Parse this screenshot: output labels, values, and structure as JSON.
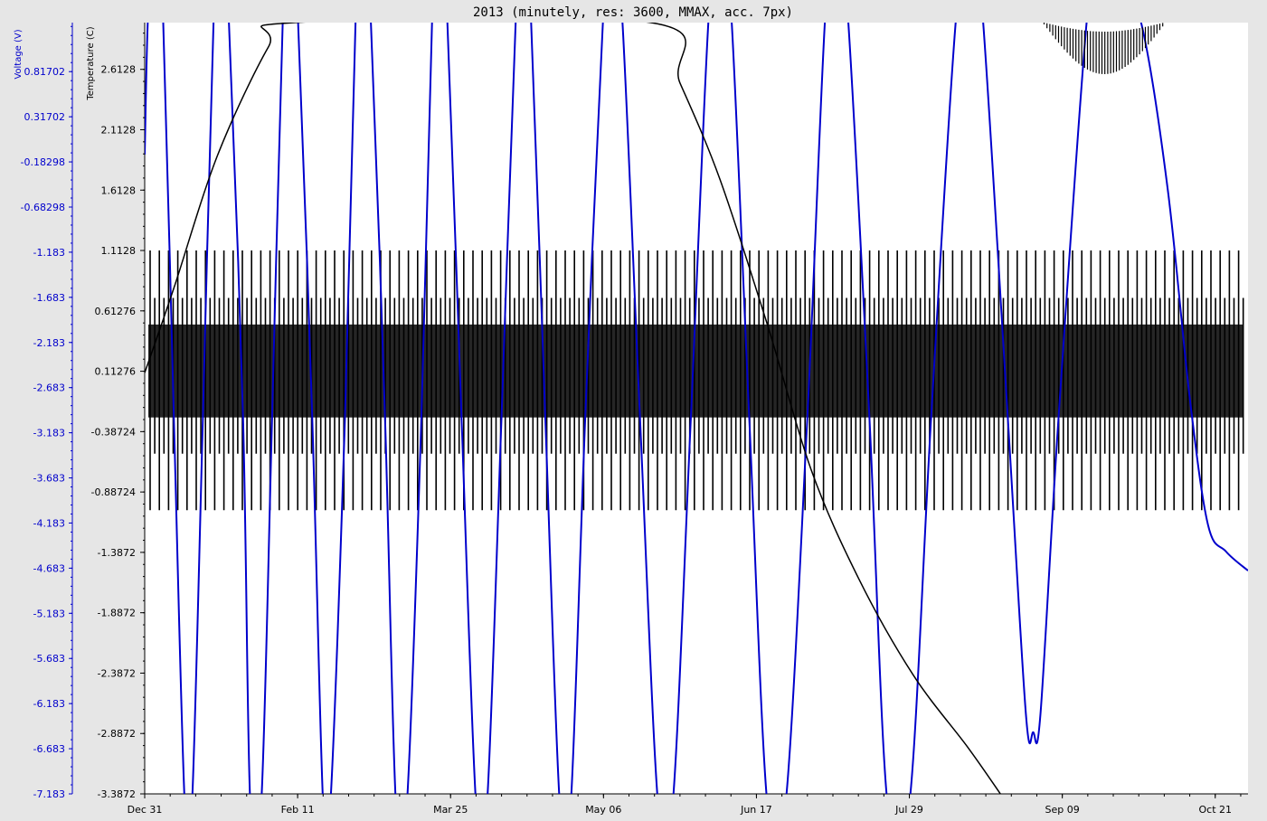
{
  "chart_data": {
    "type": "line",
    "title": "2013 (minutely, res: 3600, MMAX, acc. 7px)",
    "colors": {
      "voltage": "#0000cc",
      "temperature": "#000000",
      "background": "#ffffff",
      "frame": "#e6e6e6"
    },
    "x_axis": {
      "type": "date",
      "range": [
        "2013-12-31",
        "2014-10-30"
      ],
      "ticks": [
        {
          "date": "2013-12-31",
          "label": "Dec 31"
        },
        {
          "date": "2014-02-11",
          "label": "Feb 11"
        },
        {
          "date": "2014-03-25",
          "label": "Mar 25"
        },
        {
          "date": "2014-05-06",
          "label": "May 06"
        },
        {
          "date": "2014-06-17",
          "label": "Jun 17"
        },
        {
          "date": "2014-07-29",
          "label": "Jul 29"
        },
        {
          "date": "2014-09-09",
          "label": "Sep 09"
        },
        {
          "date": "2014-10-21",
          "label": "Oct 21"
        }
      ]
    },
    "y_axis_voltage": {
      "label": "Voltage (V)",
      "range": [
        -7.183,
        1.36
      ],
      "ticks": [
        "0.81702",
        "0.31702",
        "-0.18298",
        "-0.68298",
        "-1.183",
        "-1.683",
        "-2.183",
        "-2.683",
        "-3.183",
        "-3.683",
        "-4.183",
        "-4.683",
        "-5.183",
        "-5.683",
        "-6.183",
        "-6.683",
        "-7.183"
      ]
    },
    "y_axis_temperature": {
      "label": "Temperature (C)",
      "range": [
        -3.3872,
        3.0
      ],
      "ticks": [
        "2.6128",
        "2.1128",
        "1.6128",
        "1.1128",
        "0.61276",
        "0.11276",
        "-0.38724",
        "-0.88724",
        "-1.3872",
        "-1.8872",
        "-2.3872",
        "-2.8872",
        "-3.3872"
      ]
    },
    "series": [
      {
        "name": "Voltage",
        "axis": "voltage",
        "color": "#0000cc",
        "points": [
          [
            "2013-12-31",
            -0.1
          ],
          [
            "2014-01-01",
            1.5
          ],
          [
            "2014-01-03",
            2.0
          ],
          [
            "2014-01-05",
            1.5
          ],
          [
            "2014-01-08",
            -3.0
          ],
          [
            "2014-01-11",
            -7.3
          ],
          [
            "2014-01-13",
            -7.3
          ],
          [
            "2014-01-16",
            -3.0
          ],
          [
            "2014-01-19",
            1.5
          ],
          [
            "2014-01-21",
            2.0
          ],
          [
            "2014-01-23",
            1.5
          ],
          [
            "2014-01-27",
            -3.0
          ],
          [
            "2014-01-29",
            -7.3
          ],
          [
            "2014-02-01",
            -7.3
          ],
          [
            "2014-02-04",
            -3.0
          ],
          [
            "2014-02-07",
            1.5
          ],
          [
            "2014-02-09",
            2.0
          ],
          [
            "2014-02-11",
            1.5
          ],
          [
            "2014-02-15",
            -3.0
          ],
          [
            "2014-02-18",
            -7.3
          ],
          [
            "2014-02-20",
            -7.3
          ],
          [
            "2014-02-24",
            -3.0
          ],
          [
            "2014-02-27",
            1.5
          ],
          [
            "2014-03-01",
            2.0
          ],
          [
            "2014-03-03",
            1.5
          ],
          [
            "2014-03-07",
            -3.0
          ],
          [
            "2014-03-10",
            -7.3
          ],
          [
            "2014-03-13",
            -7.3
          ],
          [
            "2014-03-17",
            -3.0
          ],
          [
            "2014-03-20",
            1.5
          ],
          [
            "2014-03-22",
            2.0
          ],
          [
            "2014-03-24",
            1.5
          ],
          [
            "2014-03-28",
            -3.0
          ],
          [
            "2014-04-01",
            -7.3
          ],
          [
            "2014-04-04",
            -7.3
          ],
          [
            "2014-04-08",
            -3.0
          ],
          [
            "2014-04-12",
            1.5
          ],
          [
            "2014-04-14",
            2.0
          ],
          [
            "2014-04-16",
            1.5
          ],
          [
            "2014-04-20",
            -3.0
          ],
          [
            "2014-04-24",
            -7.3
          ],
          [
            "2014-04-27",
            -7.3
          ],
          [
            "2014-05-01",
            -3.0
          ],
          [
            "2014-05-06",
            1.5
          ],
          [
            "2014-05-08",
            2.0
          ],
          [
            "2014-05-11",
            1.5
          ],
          [
            "2014-05-16",
            -3.0
          ],
          [
            "2014-05-21",
            -7.3
          ],
          [
            "2014-05-25",
            -7.3
          ],
          [
            "2014-05-30",
            -3.0
          ],
          [
            "2014-06-04",
            1.5
          ],
          [
            "2014-06-07",
            2.0
          ],
          [
            "2014-06-10",
            1.5
          ],
          [
            "2014-06-15",
            -3.0
          ],
          [
            "2014-06-20",
            -7.3
          ],
          [
            "2014-06-25",
            -7.3
          ],
          [
            "2014-07-01",
            -3.0
          ],
          [
            "2014-07-06",
            1.5
          ],
          [
            "2014-07-09",
            2.0
          ],
          [
            "2014-07-12",
            1.5
          ],
          [
            "2014-07-18",
            -3.0
          ],
          [
            "2014-07-23",
            -7.3
          ],
          [
            "2014-07-29",
            -7.3
          ],
          [
            "2014-08-04",
            -3.0
          ],
          [
            "2014-08-11",
            1.5
          ],
          [
            "2014-08-15",
            2.0
          ],
          [
            "2014-08-18",
            1.5
          ],
          [
            "2014-08-25",
            -3.0
          ],
          [
            "2014-08-30",
            -6.3
          ],
          [
            "2014-09-01",
            -6.5
          ],
          [
            "2014-09-03",
            -6.3
          ],
          [
            "2014-09-08",
            -3.0
          ],
          [
            "2014-09-16",
            1.5
          ],
          [
            "2014-09-20",
            2.0
          ],
          [
            "2014-09-24",
            2.0
          ],
          [
            "2014-10-01",
            1.3
          ],
          [
            "2014-10-08",
            -0.5
          ],
          [
            "2014-10-14",
            -2.8
          ],
          [
            "2014-10-19",
            -4.2
          ],
          [
            "2014-10-24",
            -4.5
          ],
          [
            "2014-10-30",
            -4.71
          ]
        ]
      },
      {
        "name": "Temperature",
        "axis": "temperature",
        "color": "#000000",
        "points": [
          [
            "2013-12-31",
            0.1
          ],
          [
            "2014-01-08",
            0.8
          ],
          [
            "2014-01-20",
            1.9
          ],
          [
            "2014-02-03",
            2.8
          ],
          [
            "2014-02-10",
            3.0
          ],
          [
            "2014-05-19",
            3.0
          ],
          [
            "2014-05-27",
            2.5
          ],
          [
            "2014-06-07",
            1.7
          ],
          [
            "2014-06-20",
            0.5
          ],
          [
            "2014-07-02",
            -0.7
          ],
          [
            "2014-07-15",
            -1.6
          ],
          [
            "2014-07-30",
            -2.4
          ],
          [
            "2014-08-14",
            -3.0
          ],
          [
            "2014-08-23",
            -3.3872
          ]
        ]
      }
    ],
    "oscillation_bands": [
      {
        "axis": "temperature",
        "from": "2013-12-31",
        "to": "2014-10-30",
        "high": 1.1128,
        "low": -1.0372,
        "color": "#000000"
      }
    ]
  }
}
